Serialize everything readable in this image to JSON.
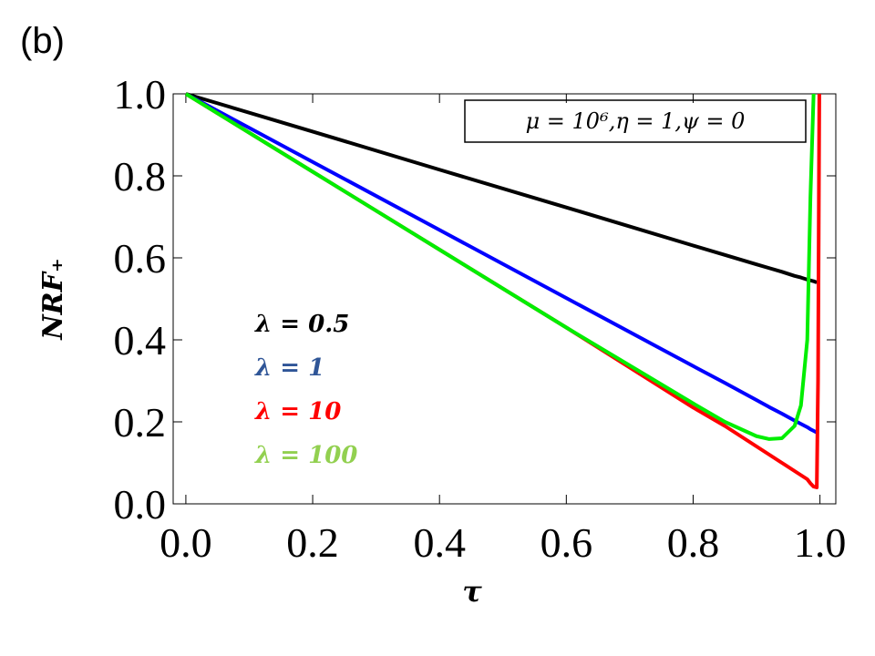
{
  "chart_data": {
    "type": "line",
    "panel_label": "(b)",
    "annotation": "μ = 10⁶,η = 1,ψ = 0",
    "xlabel": "τ",
    "ylabel": "NRF₊",
    "x": [
      0,
      0.2,
      0.4,
      0.6,
      0.8,
      0.85,
      0.9,
      0.92,
      0.94,
      0.96,
      0.97,
      0.98,
      0.985,
      0.99,
      0.995,
      0.997,
      0.999
    ],
    "series": [
      {
        "name": "λ = 0.5",
        "color": "#000000",
        "label_color": "#000000",
        "values": [
          1,
          0.908,
          0.815,
          0.723,
          0.63,
          0.607,
          0.584,
          0.575,
          0.566,
          0.556,
          0.552,
          0.547,
          0.545,
          0.543,
          0.54,
          null,
          null
        ]
      },
      {
        "name": "λ = 1",
        "color": "#0000ff",
        "label_color": "#2f5597",
        "values": [
          1,
          0.834,
          0.668,
          0.502,
          0.336,
          0.295,
          0.253,
          0.236,
          0.22,
          0.203,
          0.195,
          0.187,
          0.182,
          0.178,
          0.174,
          null,
          null
        ]
      },
      {
        "name": "λ = 10",
        "color": "#ff0000",
        "label_color": "#ff0000",
        "values": [
          1,
          0.81,
          0.62,
          0.43,
          0.235,
          0.19,
          0.14,
          0.12,
          0.1,
          0.08,
          0.07,
          0.06,
          0.05,
          0.042,
          0.04,
          0.3,
          1
        ]
      },
      {
        "name": "λ = 100",
        "color": "#00ee00",
        "label_color": "#92d050",
        "values": [
          1,
          0.81,
          0.62,
          0.43,
          0.245,
          0.2,
          0.165,
          0.158,
          0.16,
          0.19,
          0.24,
          0.4,
          0.75,
          1,
          null,
          null,
          null
        ]
      }
    ],
    "xlim": [
      -0.02,
      1.025
    ],
    "ylim": [
      0,
      1
    ],
    "xticks": [
      {
        "value": 0,
        "label": "0.0"
      },
      0.2,
      0.4,
      0.6,
      0.8,
      {
        "value": 1,
        "label": "1.0"
      }
    ],
    "yticks": [
      {
        "value": 0,
        "label": "0.0"
      },
      0.2,
      0.4,
      0.6,
      0.8,
      {
        "value": 1,
        "label": "1.0"
      }
    ]
  }
}
